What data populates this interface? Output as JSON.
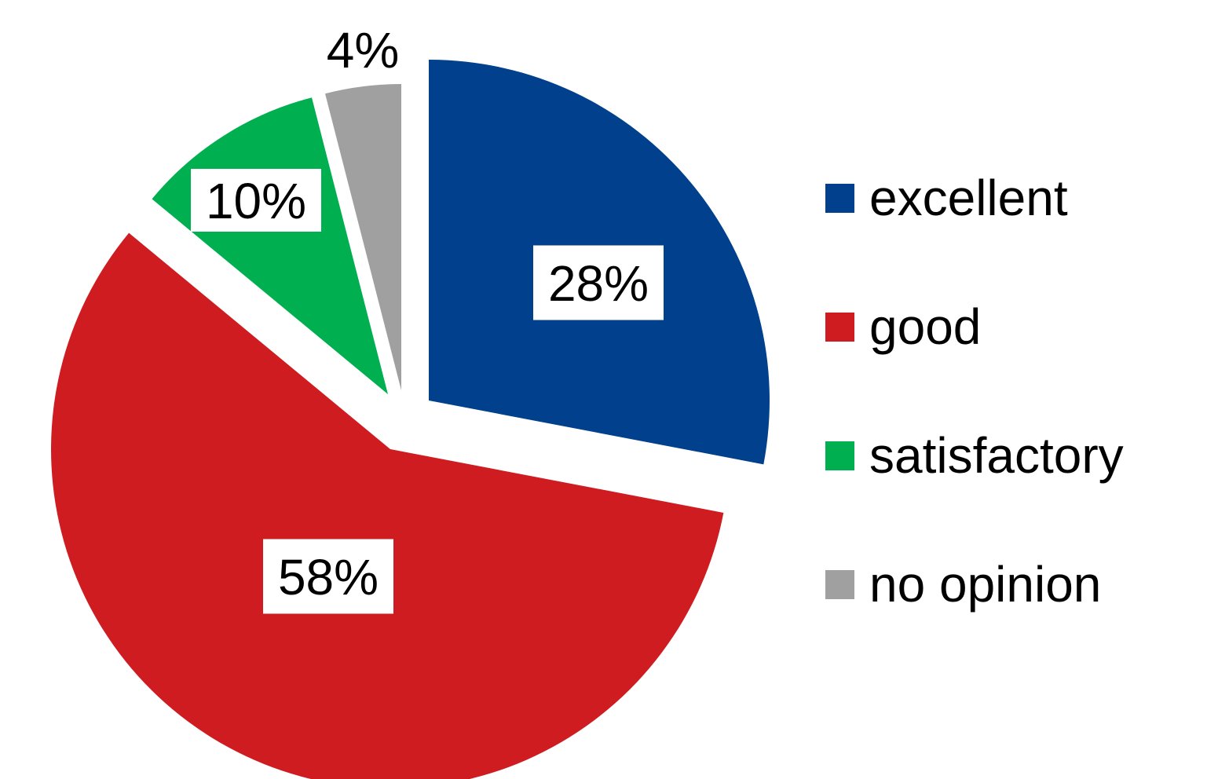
{
  "chart_data": {
    "type": "pie",
    "categories": [
      "excellent",
      "good",
      "satisfactory",
      "no opinion"
    ],
    "values": [
      28,
      58,
      10,
      4
    ],
    "data_labels": [
      "28%",
      "58%",
      "10%",
      "4%"
    ],
    "colors": [
      "#00408C",
      "#CF1C21",
      "#00B050",
      "#A0A0A0"
    ],
    "title": "",
    "legend_position": "right",
    "exploded": true,
    "start_angle": "top, clockwise"
  }
}
